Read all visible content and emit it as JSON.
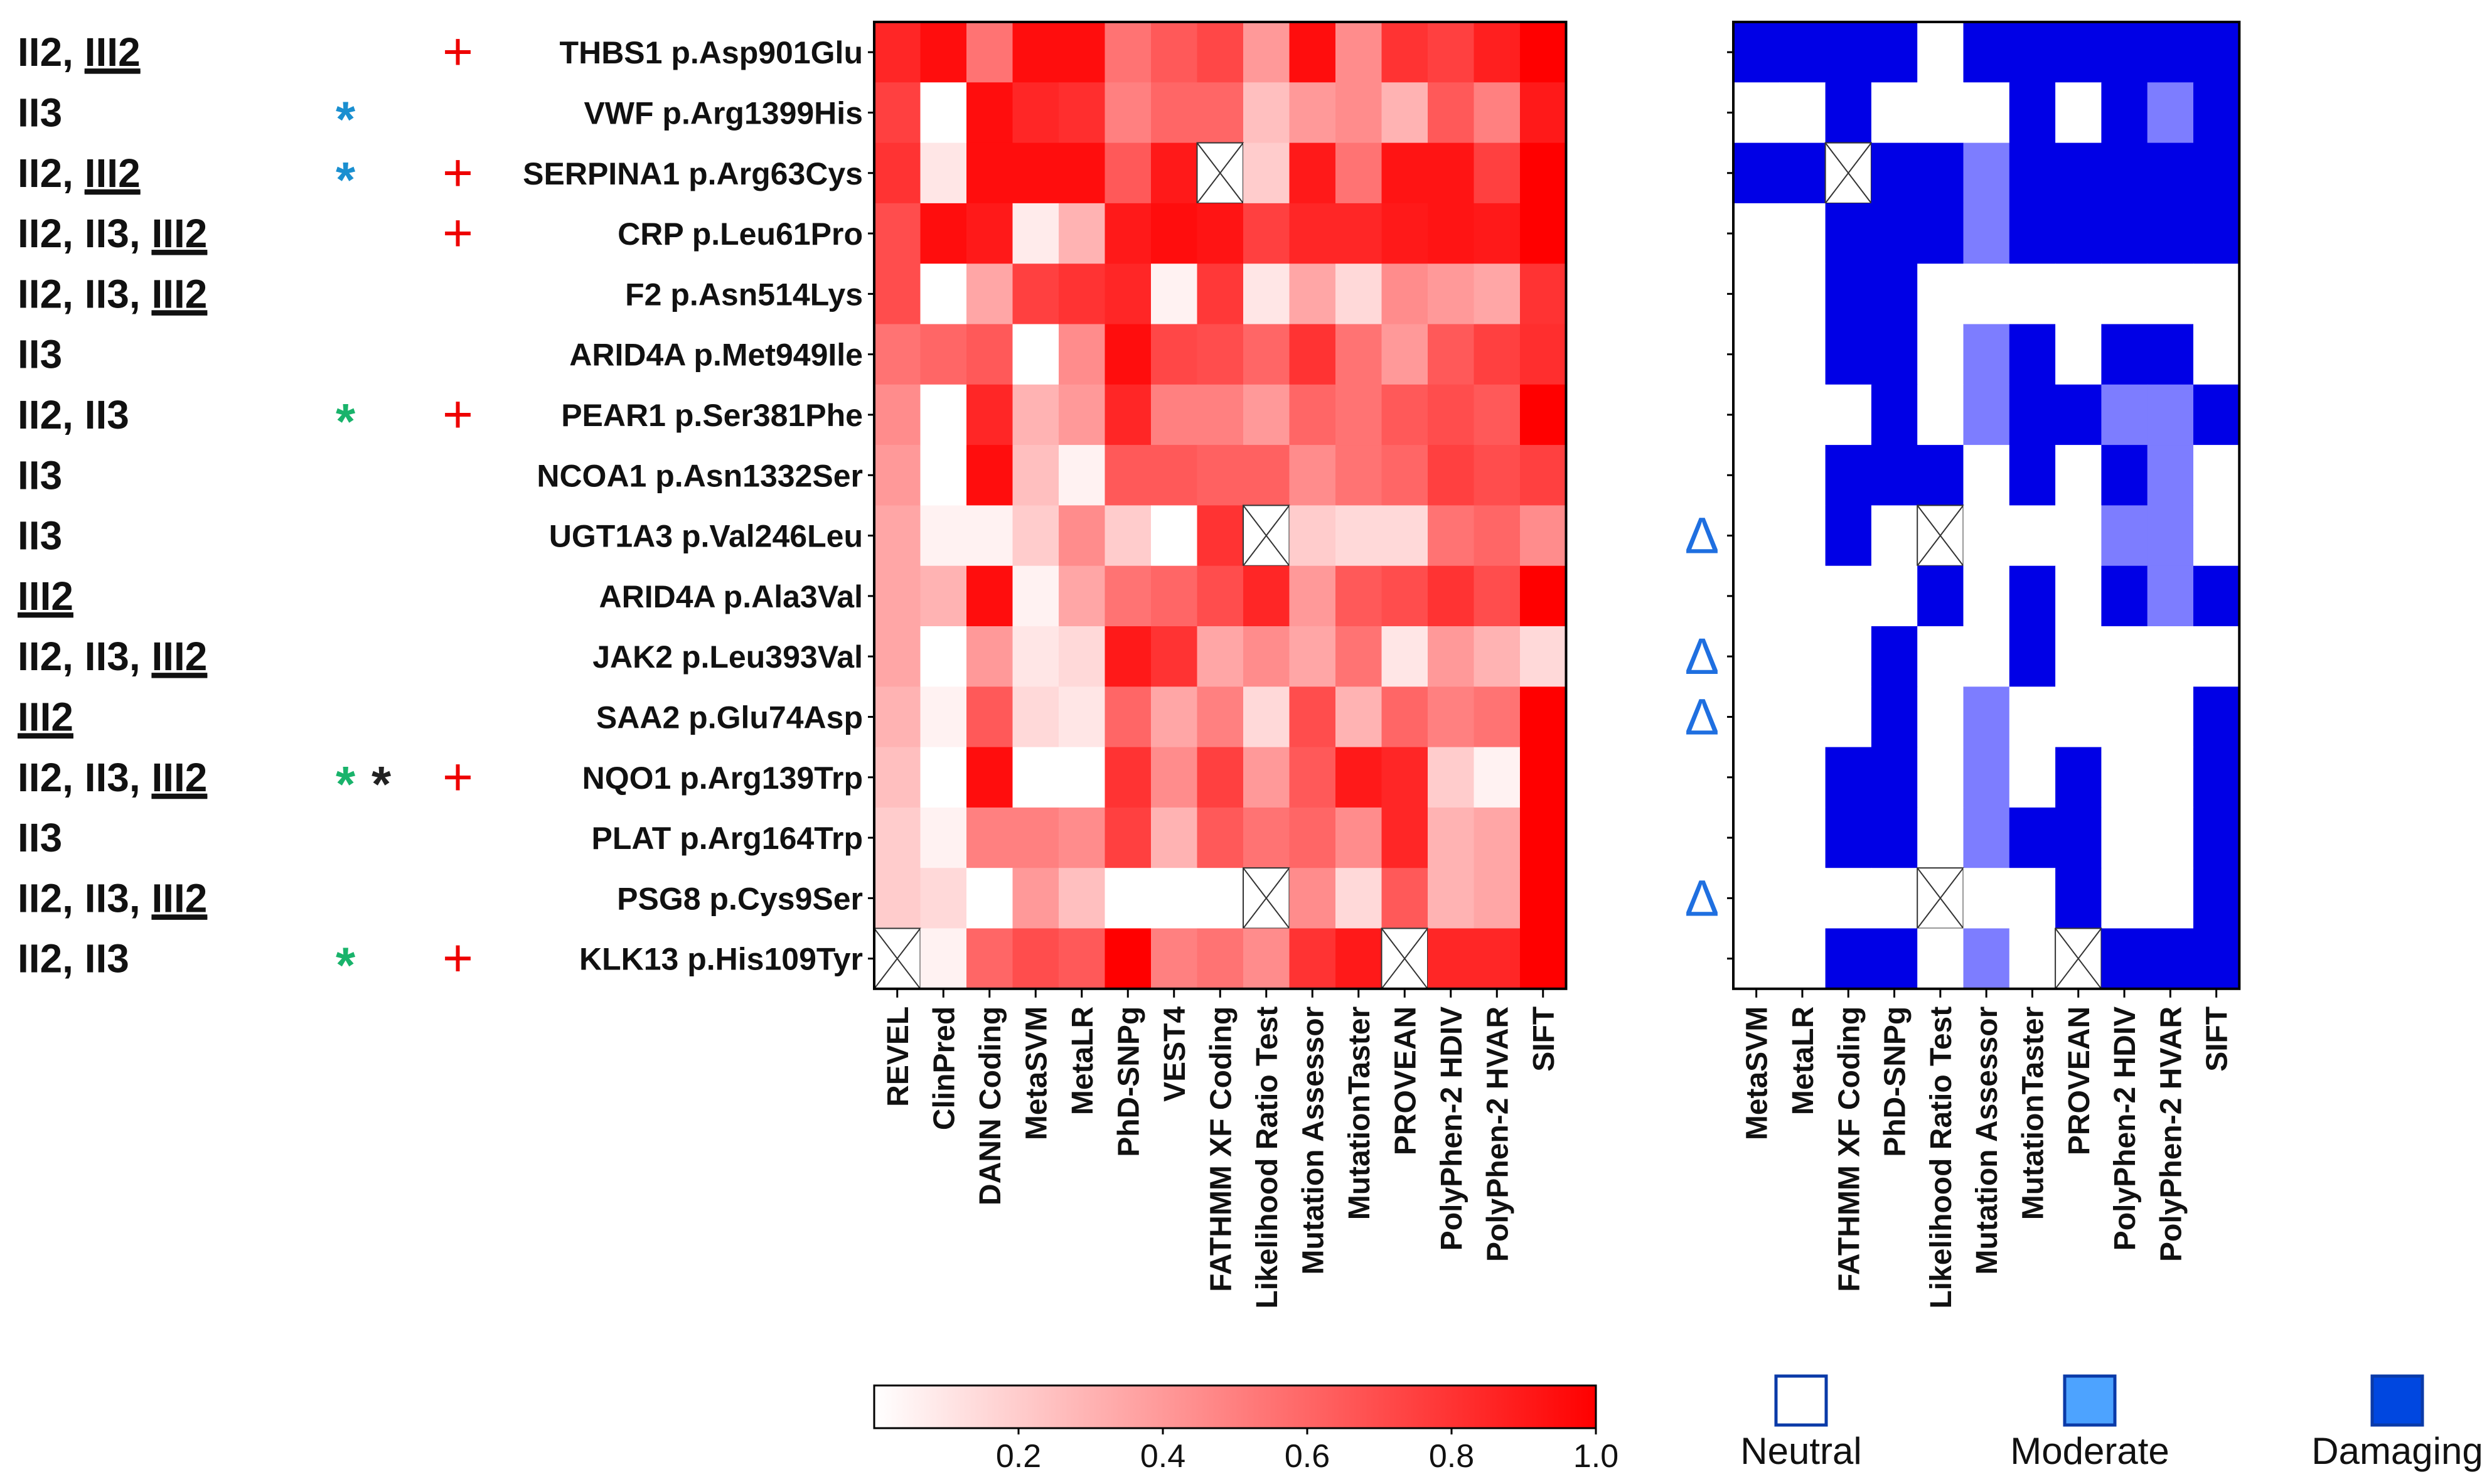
{
  "chart_data": [
    {
      "type": "heatmap",
      "title": "",
      "xlabel": "",
      "ylabel": "",
      "rows": [
        {
          "group": "II2, ",
          "group_underlined": "III2",
          "star1": "",
          "star1_color": "",
          "star2": "",
          "plus": "+",
          "variant": "THBS1 p.Asp901Glu"
        },
        {
          "group": "II3",
          "group_underlined": "",
          "star1": "*",
          "star1_color": "#1a8fd0",
          "star2": "",
          "plus": "",
          "variant": "VWF p.Arg1399His"
        },
        {
          "group": "II2, ",
          "group_underlined": "III2",
          "star1": "*",
          "star1_color": "#1a8fd0",
          "star2": "",
          "plus": "+",
          "variant": "SERPINA1 p.Arg63Cys"
        },
        {
          "group": "II2, II3, ",
          "group_underlined": "III2",
          "star1": "",
          "star1_color": "",
          "star2": "",
          "plus": "+",
          "variant": "CRP p.Leu61Pro"
        },
        {
          "group": "II2, II3, ",
          "group_underlined": "III2",
          "star1": "",
          "star1_color": "",
          "star2": "",
          "plus": "",
          "variant": "F2 p.Asn514Lys"
        },
        {
          "group": "II3",
          "group_underlined": "",
          "star1": "",
          "star1_color": "",
          "star2": "",
          "plus": "",
          "variant": "ARID4A p.Met949Ile"
        },
        {
          "group": "II2, II3",
          "group_underlined": "",
          "star1": "*",
          "star1_color": "#19b36b",
          "star2": "",
          "plus": "+",
          "variant": "PEAR1 p.Ser381Phe"
        },
        {
          "group": "II3",
          "group_underlined": "",
          "star1": "",
          "star1_color": "",
          "star2": "",
          "plus": "",
          "variant": "NCOA1 p.Asn1332Ser"
        },
        {
          "group": "II3",
          "group_underlined": "",
          "star1": "",
          "star1_color": "",
          "star2": "",
          "plus": "",
          "variant": "UGT1A3 p.Val246Leu"
        },
        {
          "group": "",
          "group_underlined": "III2",
          "star1": "",
          "star1_color": "",
          "star2": "",
          "plus": "",
          "variant": "ARID4A p.Ala3Val"
        },
        {
          "group": "II2, II3, ",
          "group_underlined": "III2",
          "star1": "",
          "star1_color": "",
          "star2": "",
          "plus": "",
          "variant": "JAK2 p.Leu393Val"
        },
        {
          "group": "",
          "group_underlined": "III2",
          "star1": "",
          "star1_color": "",
          "star2": "",
          "plus": "",
          "variant": "SAA2 p.Glu74Asp"
        },
        {
          "group": "II2, II3, ",
          "group_underlined": "III2",
          "star1": "*",
          "star1_color": "#19b36b",
          "star2": "*",
          "plus": "+",
          "variant": "NQO1 p.Arg139Trp"
        },
        {
          "group": "II3",
          "group_underlined": "",
          "star1": "",
          "star1_color": "",
          "star2": "",
          "plus": "",
          "variant": "PLAT p.Arg164Trp"
        },
        {
          "group": "II2, II3, ",
          "group_underlined": "III2",
          "star1": "",
          "star1_color": "",
          "star2": "",
          "plus": "",
          "variant": "PSG8 p.Cys9Ser"
        },
        {
          "group": "II2, II3",
          "group_underlined": "",
          "star1": "*",
          "star1_color": "#19b36b",
          "star2": "",
          "plus": "+",
          "variant": "KLK13 p.His109Tyr"
        }
      ],
      "columns": [
        "REVEL",
        "ClinPred",
        "DANN Coding",
        "MetaSVM",
        "MetaLR",
        "PhD-SNPg",
        "VEST4",
        "FATHMM XF Coding",
        "Likelihood Ratio Test",
        "Mutation Assessor",
        "MutationTaster",
        "PROVEAN",
        "PolyPhen-2 HDIV",
        "PolyPhen-2 HVAR",
        "SIFT"
      ],
      "values": [
        [
          0.85,
          0.95,
          0.55,
          0.95,
          0.95,
          0.55,
          0.65,
          0.72,
          0.4,
          0.95,
          0.45,
          0.8,
          0.75,
          0.88,
          1.0
        ],
        [
          0.75,
          0.0,
          0.95,
          0.85,
          0.82,
          0.5,
          0.6,
          0.6,
          0.25,
          0.4,
          0.45,
          0.3,
          0.65,
          0.5,
          0.9
        ],
        [
          0.8,
          0.1,
          0.95,
          0.95,
          0.95,
          0.65,
          0.9,
          null,
          0.2,
          0.9,
          0.55,
          0.92,
          0.92,
          0.75,
          1.0
        ],
        [
          0.7,
          0.95,
          0.9,
          0.08,
          0.3,
          0.9,
          0.95,
          0.92,
          0.75,
          0.85,
          0.85,
          0.9,
          0.92,
          0.9,
          1.0
        ],
        [
          0.7,
          0.0,
          0.35,
          0.75,
          0.8,
          0.85,
          0.05,
          0.78,
          0.1,
          0.35,
          0.15,
          0.45,
          0.4,
          0.35,
          0.8
        ],
        [
          0.55,
          0.6,
          0.65,
          0.0,
          0.45,
          0.95,
          0.72,
          0.7,
          0.6,
          0.8,
          0.55,
          0.4,
          0.65,
          0.75,
          0.82
        ],
        [
          0.45,
          0.0,
          0.85,
          0.3,
          0.4,
          0.85,
          0.5,
          0.5,
          0.4,
          0.6,
          0.55,
          0.65,
          0.7,
          0.65,
          1.0
        ],
        [
          0.4,
          0.0,
          0.95,
          0.25,
          0.05,
          0.65,
          0.65,
          0.62,
          0.62,
          0.45,
          0.55,
          0.6,
          0.75,
          0.7,
          0.75
        ],
        [
          0.35,
          0.05,
          0.05,
          0.2,
          0.45,
          0.2,
          0.0,
          0.8,
          null,
          0.2,
          0.15,
          0.15,
          0.55,
          0.6,
          0.45
        ],
        [
          0.35,
          0.3,
          0.95,
          0.05,
          0.35,
          0.55,
          0.6,
          0.7,
          0.85,
          0.4,
          0.65,
          0.7,
          0.8,
          0.7,
          1.0
        ],
        [
          0.35,
          0.0,
          0.4,
          0.1,
          0.15,
          0.9,
          0.8,
          0.35,
          0.45,
          0.35,
          0.55,
          0.1,
          0.4,
          0.3,
          0.15
        ],
        [
          0.3,
          0.05,
          0.65,
          0.15,
          0.1,
          0.6,
          0.35,
          0.5,
          0.15,
          0.7,
          0.3,
          0.6,
          0.5,
          0.55,
          1.0
        ],
        [
          0.25,
          0.0,
          0.95,
          0.0,
          0.0,
          0.8,
          0.45,
          0.75,
          0.4,
          0.65,
          0.9,
          0.85,
          0.2,
          0.05,
          1.0
        ],
        [
          0.2,
          0.05,
          0.5,
          0.5,
          0.45,
          0.75,
          0.3,
          0.65,
          0.55,
          0.6,
          0.45,
          0.85,
          0.3,
          0.35,
          1.0
        ],
        [
          0.2,
          0.15,
          0.0,
          0.4,
          0.25,
          0.0,
          0.0,
          0.0,
          null,
          0.45,
          0.15,
          0.65,
          0.3,
          0.35,
          1.0
        ],
        [
          null,
          0.05,
          0.6,
          0.7,
          0.65,
          1.0,
          0.5,
          0.55,
          0.45,
          0.8,
          0.9,
          null,
          0.85,
          0.85,
          1.0
        ]
      ],
      "colorbar": {
        "ticks": [
          0.2,
          0.4,
          0.6,
          0.8,
          1.0
        ],
        "tick_labels": [
          "0.2",
          "0.4",
          "0.6",
          "0.8",
          "1.0"
        ],
        "range": [
          0,
          1.0
        ],
        "color_low": "#ffffff",
        "color_high": "#ff0000"
      }
    },
    {
      "type": "heatmap",
      "title": "",
      "xlabel": "",
      "ylabel": "",
      "columns": [
        "MetaSVM",
        "MetaLR",
        "FATHMM XF Coding",
        "PhD-SNPg",
        "Likelihood Ratio Test",
        "Mutation Assessor",
        "MutationTaster",
        "PROVEAN",
        "PolyPhen-2 HDIV",
        "PolyPhen-2 HVAR",
        "SIFT"
      ],
      "categories_legend": [
        "Neutral",
        "Moderate",
        "Damaging"
      ],
      "category_colors": {
        "Neutral": "#ffffff",
        "Moderate": "#7d7dff",
        "Damaging": "#0000e6"
      },
      "row_markers": [
        "",
        "",
        "",
        "",
        "",
        "",
        "",
        "",
        "Δ",
        "",
        "Δ",
        "Δ",
        "",
        "",
        "Δ",
        ""
      ],
      "marker_color": "#1f6fe0",
      "values": [
        [
          "Damaging",
          "Damaging",
          "Damaging",
          "Damaging",
          "Neutral",
          "Damaging",
          "Damaging",
          "Damaging",
          "Damaging",
          "Damaging",
          "Damaging"
        ],
        [
          "Neutral",
          "Neutral",
          "Damaging",
          "Neutral",
          "Neutral",
          "Neutral",
          "Damaging",
          "Neutral",
          "Damaging",
          "Moderate",
          "Damaging"
        ],
        [
          "Damaging",
          "Damaging",
          null,
          "Damaging",
          "Damaging",
          "Moderate",
          "Damaging",
          "Damaging",
          "Damaging",
          "Damaging",
          "Damaging"
        ],
        [
          "Neutral",
          "Neutral",
          "Damaging",
          "Damaging",
          "Damaging",
          "Moderate",
          "Damaging",
          "Damaging",
          "Damaging",
          "Damaging",
          "Damaging"
        ],
        [
          "Neutral",
          "Neutral",
          "Damaging",
          "Damaging",
          "Neutral",
          "Neutral",
          "Neutral",
          "Neutral",
          "Neutral",
          "Neutral",
          "Neutral"
        ],
        [
          "Neutral",
          "Neutral",
          "Damaging",
          "Damaging",
          "Neutral",
          "Moderate",
          "Damaging",
          "Neutral",
          "Damaging",
          "Damaging",
          "Neutral"
        ],
        [
          "Neutral",
          "Neutral",
          "Neutral",
          "Damaging",
          "Neutral",
          "Moderate",
          "Damaging",
          "Damaging",
          "Moderate",
          "Moderate",
          "Damaging"
        ],
        [
          "Neutral",
          "Neutral",
          "Damaging",
          "Damaging",
          "Damaging",
          "Neutral",
          "Damaging",
          "Neutral",
          "Damaging",
          "Moderate",
          "Neutral"
        ],
        [
          "Neutral",
          "Neutral",
          "Damaging",
          "Neutral",
          null,
          "Neutral",
          "Neutral",
          "Neutral",
          "Moderate",
          "Moderate",
          "Neutral"
        ],
        [
          "Neutral",
          "Neutral",
          "Neutral",
          "Neutral",
          "Damaging",
          "Neutral",
          "Damaging",
          "Neutral",
          "Damaging",
          "Moderate",
          "Damaging"
        ],
        [
          "Neutral",
          "Neutral",
          "Neutral",
          "Damaging",
          "Neutral",
          "Neutral",
          "Damaging",
          "Neutral",
          "Neutral",
          "Neutral",
          "Neutral"
        ],
        [
          "Neutral",
          "Neutral",
          "Neutral",
          "Damaging",
          "Neutral",
          "Moderate",
          "Neutral",
          "Neutral",
          "Neutral",
          "Neutral",
          "Damaging"
        ],
        [
          "Neutral",
          "Neutral",
          "Damaging",
          "Damaging",
          "Neutral",
          "Moderate",
          "Neutral",
          "Damaging",
          "Neutral",
          "Neutral",
          "Damaging"
        ],
        [
          "Neutral",
          "Neutral",
          "Damaging",
          "Damaging",
          "Neutral",
          "Moderate",
          "Damaging",
          "Damaging",
          "Neutral",
          "Neutral",
          "Damaging"
        ],
        [
          "Neutral",
          "Neutral",
          "Neutral",
          "Neutral",
          null,
          "Neutral",
          "Neutral",
          "Damaging",
          "Neutral",
          "Neutral",
          "Damaging"
        ],
        [
          "Neutral",
          "Neutral",
          "Damaging",
          "Damaging",
          "Neutral",
          "Moderate",
          "Neutral",
          null,
          "Damaging",
          "Damaging",
          "Damaging"
        ]
      ]
    }
  ]
}
